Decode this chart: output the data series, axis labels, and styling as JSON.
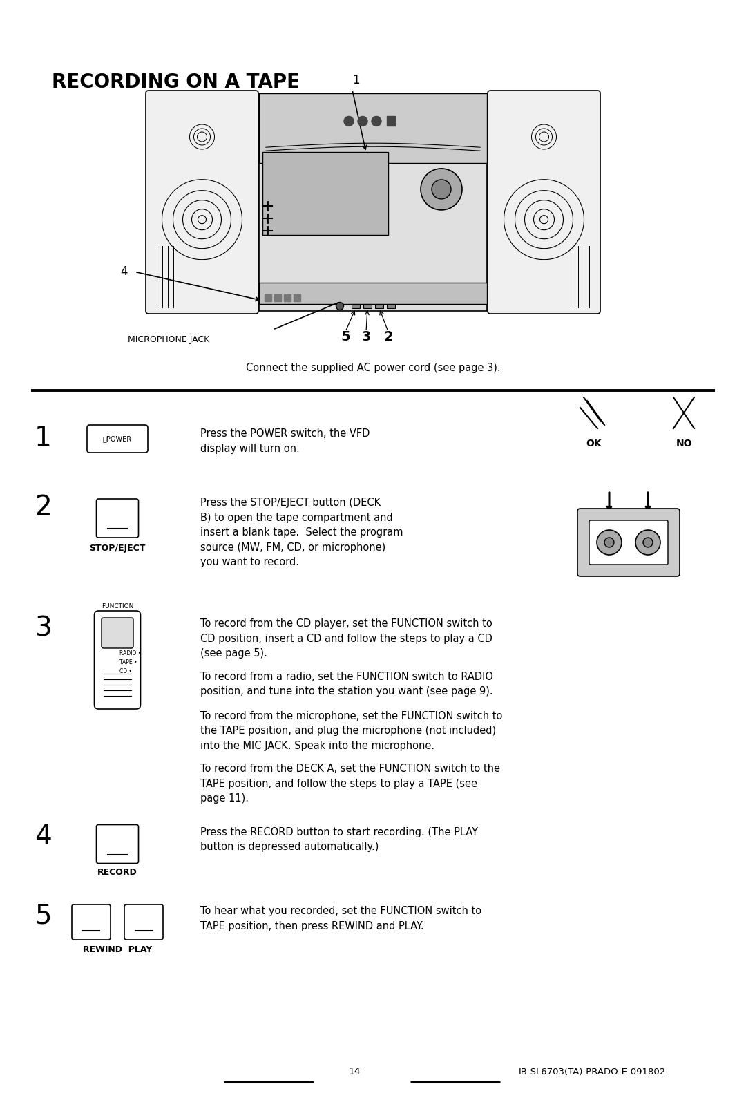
{
  "title": "RECORDING ON A TAPE",
  "bg_color": "#ffffff",
  "text_color": "#000000",
  "page_width": 10.8,
  "page_height": 16.18,
  "subtitle": "Connect the supplied AC power cord (see page 3).",
  "footer": "14",
  "footer_right": "IB-SL6703(TA)-PRADO-E-091802",
  "step1_text": "Press the POWER switch, the VFD\ndisplay will turn on.",
  "step2_text": "Press the STOP/EJECT button (DECK\nB) to open the tape compartment and\ninsert a blank tape.  Select the program\nsource (MW, FM, CD, or microphone)\nyou want to record.",
  "step3_texts": [
    "To record from the CD player, set the FUNCTION switch to\nCD position, insert a CD and follow the steps to play a CD\n(see page 5).",
    "To record from a radio, set the FUNCTION switch to RADIO\nposition, and tune into the station you want (see page 9).",
    "To record from the microphone, set the FUNCTION switch to\nthe TAPE position, and plug the microphone (not included)\ninto the MIC JACK. Speak into the microphone.",
    "To record from the DECK A, set the FUNCTION switch to the\nTAPE position, and follow the steps to play a TAPE (see\npage 11)."
  ],
  "step4_text": "Press the RECORD button to start recording. (The PLAY\nbutton is depressed automatically.)",
  "step5_text": "To hear what you recorded, set the FUNCTION switch to\nTAPE position, then press REWIND and PLAY.",
  "mic_label": "MICROPHONE JACK",
  "label1": "1",
  "label2": "2",
  "label3": "3",
  "label4": "4",
  "label5": "5"
}
